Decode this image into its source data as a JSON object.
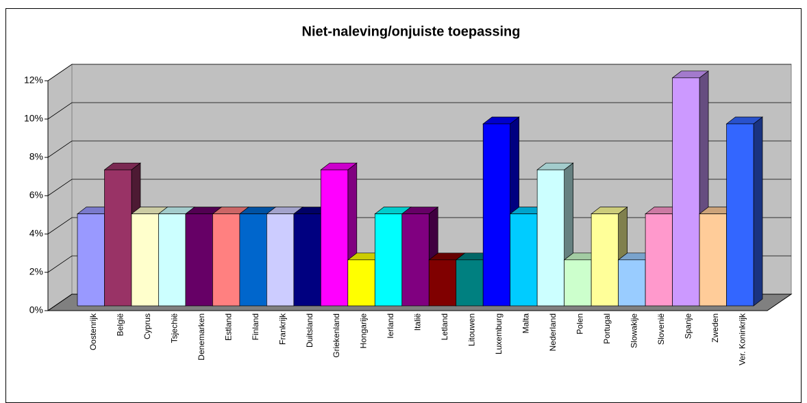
{
  "chart_data": {
    "type": "bar3d",
    "title": "Niet-naleving/onjuiste toepassing",
    "categories": [
      "Oostenrijk",
      "België",
      "Cyprus",
      "Tsjechië",
      "Denemarken",
      "Estland",
      "Finland",
      "Frankrijk",
      "Duitsland",
      "Griekenland",
      "Hongarije",
      "Ierland",
      "Italië",
      "Letland",
      "Litouwen",
      "Luxemburg",
      "Malta",
      "Nederland",
      "Polen",
      "Portugal",
      "Slowakije",
      "Slovenië",
      "Spanje",
      "Zweden",
      "Ver. Koninkrijk"
    ],
    "values": [
      4.8,
      7.1,
      4.8,
      4.8,
      4.8,
      4.8,
      4.8,
      4.8,
      4.8,
      7.1,
      2.4,
      4.8,
      4.8,
      2.4,
      2.4,
      9.5,
      4.8,
      7.1,
      2.4,
      4.8,
      2.4,
      4.8,
      11.9,
      4.8,
      9.5
    ],
    "colors": [
      "#9999ff",
      "#993366",
      "#ffffcc",
      "#ccffff",
      "#660066",
      "#ff8080",
      "#0066cc",
      "#ccccff",
      "#000080",
      "#ff00ff",
      "#ffff00",
      "#00ffff",
      "#800080",
      "#800000",
      "#008080",
      "#0000ff",
      "#00ccff",
      "#ccffff",
      "#ccffcc",
      "#ffff99",
      "#99ccff",
      "#ff99cc",
      "#cc99ff",
      "#ffcc99",
      "#3366ff"
    ],
    "ylim": [
      0,
      12
    ],
    "yticks": [
      {
        "value": 0,
        "label": "0%"
      },
      {
        "value": 2,
        "label": "2%"
      },
      {
        "value": 4,
        "label": "4%"
      },
      {
        "value": 6,
        "label": "6%"
      },
      {
        "value": 8,
        "label": "8%"
      },
      {
        "value": 10,
        "label": "10%"
      },
      {
        "value": 12,
        "label": "12%"
      }
    ],
    "grid": true
  }
}
